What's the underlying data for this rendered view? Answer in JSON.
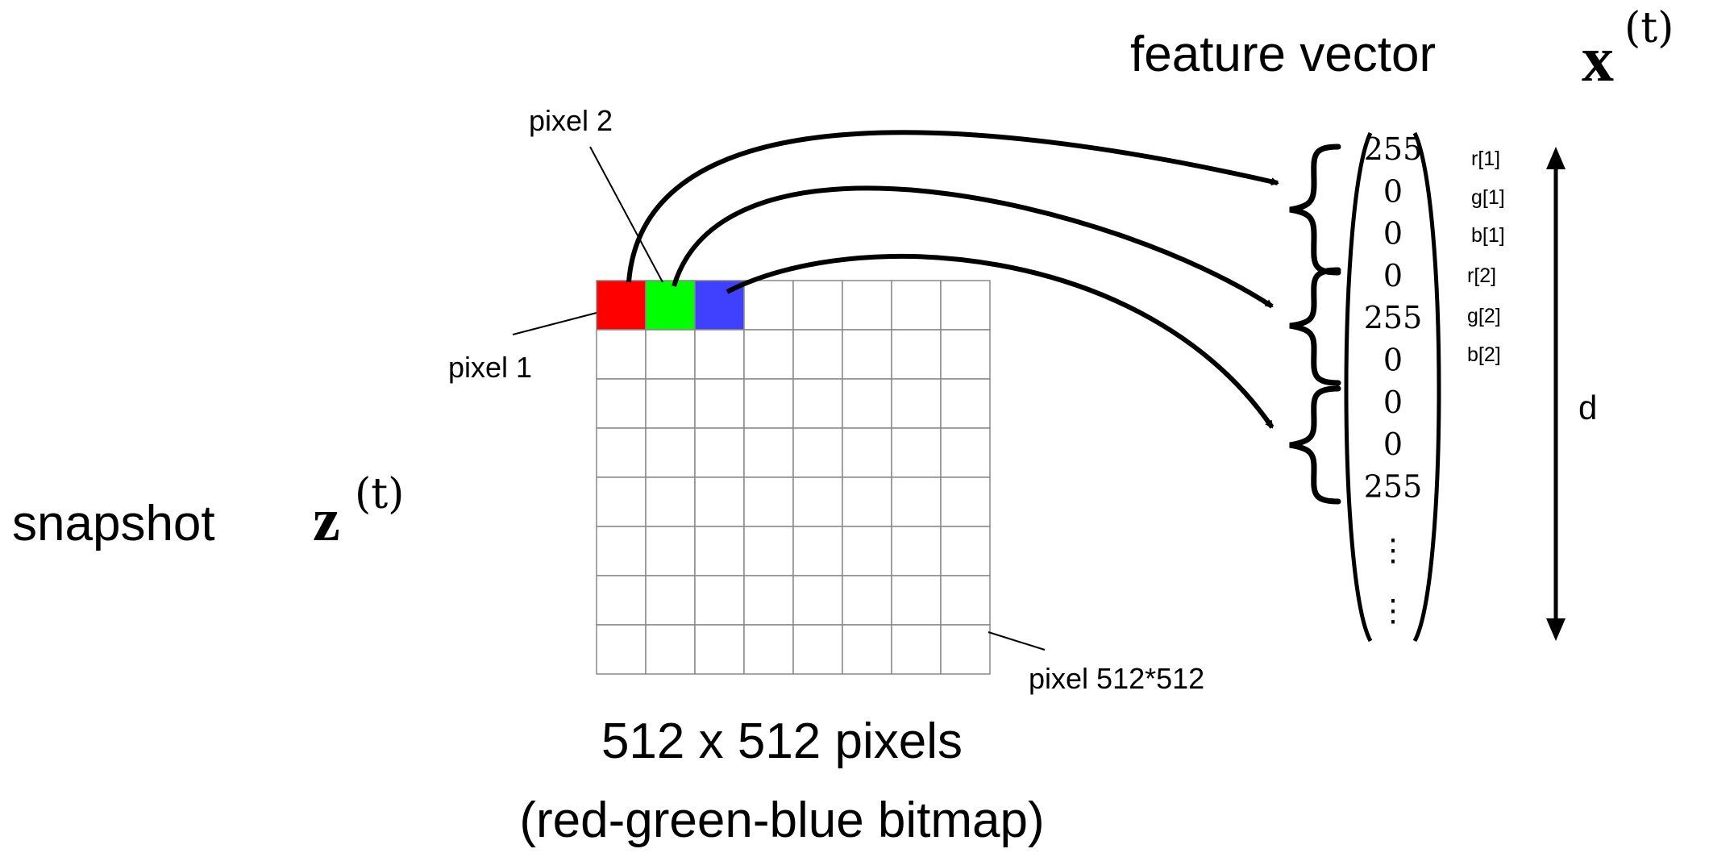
{
  "snapshot": {
    "label": "snapshot",
    "symbol": "z",
    "superscript": "(t)"
  },
  "feature_vector": {
    "label": "feature vector",
    "symbol": "x",
    "superscript": "(t)",
    "entries": [
      "255",
      "0",
      "0",
      "0",
      "255",
      "0",
      "0",
      "0",
      "255"
    ],
    "ellipsis": "⋮",
    "channel_labels": [
      "r[1]",
      "g[1]",
      "b[1]",
      "r[2]",
      "g[2]",
      "b[2]"
    ],
    "dimension_label": "d"
  },
  "grid": {
    "rows": 8,
    "cols": 8,
    "highlight_colors": [
      "#ff0000",
      "#00ff00",
      "#4040ff"
    ],
    "line_color": "#888888"
  },
  "callouts": {
    "pixel1": "pixel 1",
    "pixel2": "pixel 2",
    "pixel_last": "pixel 512*512"
  },
  "caption": {
    "line1": "512 x 512 pixels",
    "line2": "(red-green-blue bitmap)"
  }
}
